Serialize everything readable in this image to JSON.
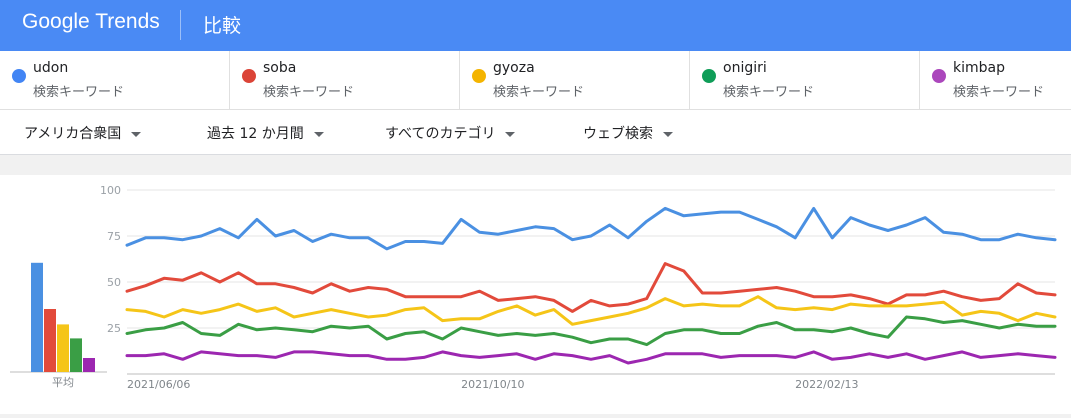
{
  "header": {
    "logo_google": "Google",
    "logo_trends": "Trends",
    "title": "比較"
  },
  "terms": [
    {
      "name": "udon",
      "sub": "検索キーワード",
      "color": "#4285f4"
    },
    {
      "name": "soba",
      "sub": "検索キーワード",
      "color": "#db4437"
    },
    {
      "name": "gyoza",
      "sub": "検索キーワード",
      "color": "#f4b400"
    },
    {
      "name": "onigiri",
      "sub": "検索キーワード",
      "color": "#0f9d58"
    },
    {
      "name": "kimbap",
      "sub": "検索キーワード",
      "color": "#ab47bc"
    }
  ],
  "filters": {
    "region": "アメリカ合衆国",
    "time": "過去 12 か月間",
    "category": "すべてのカテゴリ",
    "type": "ウェブ検索"
  },
  "chart_data": {
    "type": "line",
    "avg_label": "平均",
    "averages": [
      78,
      45,
      34,
      24,
      10
    ],
    "ylim": [
      0,
      100
    ],
    "yticks": [
      "100",
      "75",
      "50",
      "25"
    ],
    "xlabels": [
      "2021/06/06",
      "2021/10/10",
      "2022/02/13"
    ],
    "xlabel_index": [
      0,
      18,
      36
    ],
    "series": [
      {
        "name": "udon",
        "color": "#4a90e2",
        "values": [
          70,
          74,
          74,
          73,
          75,
          79,
          74,
          84,
          75,
          78,
          72,
          76,
          74,
          74,
          68,
          72,
          72,
          71,
          84,
          77,
          76,
          78,
          80,
          79,
          73,
          75,
          81,
          74,
          83,
          90,
          86,
          87,
          88,
          88,
          84,
          80,
          74,
          90,
          74,
          85,
          81,
          78,
          81,
          85,
          77,
          76,
          73,
          73,
          76,
          74,
          73
        ]
      },
      {
        "name": "soba",
        "color": "#e24a3b",
        "values": [
          45,
          48,
          52,
          51,
          55,
          50,
          55,
          49,
          49,
          47,
          44,
          49,
          45,
          47,
          46,
          42,
          42,
          42,
          42,
          45,
          40,
          41,
          42,
          40,
          34,
          40,
          37,
          38,
          41,
          60,
          56,
          44,
          44,
          45,
          46,
          47,
          45,
          42,
          42,
          43,
          41,
          38,
          43,
          43,
          45,
          42,
          40,
          41,
          49,
          44,
          43
        ]
      },
      {
        "name": "gyoza",
        "color": "#f5c518",
        "values": [
          35,
          34,
          31,
          35,
          33,
          35,
          38,
          34,
          36,
          31,
          33,
          35,
          33,
          31,
          32,
          35,
          36,
          29,
          30,
          30,
          34,
          37,
          32,
          35,
          27,
          29,
          31,
          33,
          36,
          41,
          37,
          38,
          37,
          37,
          42,
          36,
          35,
          36,
          35,
          38,
          37,
          37,
          37,
          38,
          39,
          32,
          34,
          33,
          29,
          33,
          31
        ]
      },
      {
        "name": "onigiri",
        "color": "#3a9e45",
        "values": [
          22,
          24,
          25,
          28,
          22,
          21,
          27,
          24,
          25,
          24,
          23,
          26,
          25,
          26,
          19,
          22,
          23,
          19,
          25,
          23,
          21,
          22,
          21,
          22,
          20,
          17,
          19,
          19,
          16,
          22,
          24,
          24,
          22,
          22,
          26,
          28,
          24,
          24,
          23,
          25,
          22,
          20,
          31,
          30,
          28,
          29,
          27,
          25,
          27,
          26,
          26
        ]
      },
      {
        "name": "kimbap",
        "color": "#9c27b0",
        "values": [
          10,
          10,
          11,
          8,
          12,
          11,
          10,
          10,
          9,
          12,
          12,
          11,
          10,
          10,
          8,
          8,
          9,
          12,
          10,
          9,
          10,
          11,
          8,
          11,
          10,
          8,
          10,
          6,
          8,
          11,
          11,
          11,
          9,
          10,
          10,
          10,
          9,
          12,
          8,
          9,
          11,
          9,
          11,
          8,
          10,
          12,
          9,
          10,
          11,
          10,
          9
        ]
      }
    ]
  }
}
